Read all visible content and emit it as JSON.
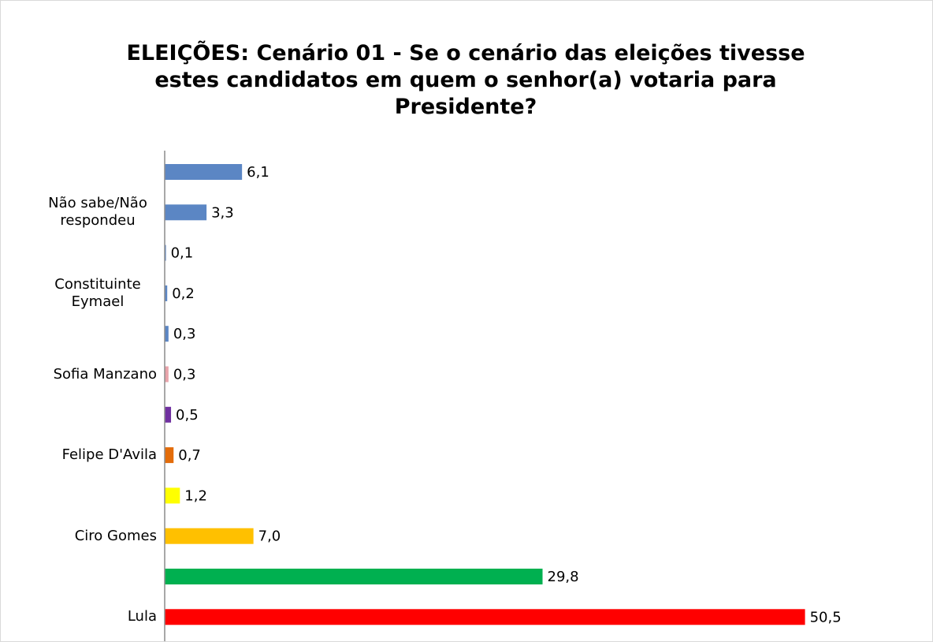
{
  "chart_data": {
    "type": "bar",
    "orientation": "horizontal",
    "title": "ELEIÇÕES: Cenário 01 - Se o cenário das eleições tivesse estes candidatos em quem o senhor(a) votaria para Presidente?",
    "categories": [
      null,
      "Não sabe/Não respondeu",
      null,
      "Constituinte Eymael",
      null,
      "Sofia Manzano",
      null,
      "Felipe D'Avila",
      null,
      "Ciro Gomes",
      null,
      "Lula"
    ],
    "values": [
      6.1,
      3.3,
      0.1,
      0.2,
      0.3,
      0.3,
      0.5,
      0.7,
      1.2,
      7.0,
      29.8,
      50.5
    ],
    "value_labels": [
      "6,1",
      "3,3",
      "0,1",
      "0,2",
      "0,3",
      "0,3",
      "0,5",
      "0,7",
      "1,2",
      "7,0",
      "29,8",
      "50,5"
    ],
    "colors": [
      "#5b86c4",
      "#5b86c4",
      "#5b86c4",
      "#5b86c4",
      "#5b86c4",
      "#e8a3aa",
      "#7030a0",
      "#e36c0a",
      "#ffff00",
      "#ffc000",
      "#00b050",
      "#ff0000"
    ],
    "xlim": [
      0,
      55
    ]
  }
}
